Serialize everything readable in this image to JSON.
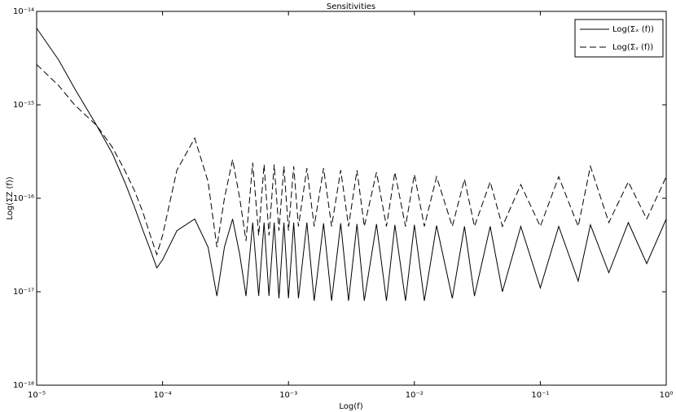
{
  "chart_data": {
    "type": "line",
    "title": "Sensitivities",
    "xlabel": "Log(f)",
    "ylabel": "Log(ΣZ (f))",
    "xscale": "log",
    "yscale": "log",
    "xlim": [
      1e-05,
      1
    ],
    "ylim": [
      1e-18,
      1e-14
    ],
    "xticks": [
      {
        "value": 1e-05,
        "label": "10⁻⁵"
      },
      {
        "value": 0.0001,
        "label": "10⁻⁴"
      },
      {
        "value": 0.001,
        "label": "10⁻³"
      },
      {
        "value": 0.01,
        "label": "10⁻²"
      },
      {
        "value": 0.1,
        "label": "10⁻¹"
      },
      {
        "value": 1,
        "label": "10⁰"
      }
    ],
    "yticks": [
      {
        "value": 1e-18,
        "label": "10⁻¹⁸"
      },
      {
        "value": 1e-17,
        "label": "10⁻¹⁷"
      },
      {
        "value": 1e-16,
        "label": "10⁻¹⁶"
      },
      {
        "value": 1e-15,
        "label": "10⁻¹⁵"
      },
      {
        "value": 1e-14,
        "label": "10⁻¹⁴"
      }
    ],
    "legend": "upper right",
    "x": [
      1e-05,
      1.5e-05,
      2e-05,
      3e-05,
      4e-05,
      5e-05,
      6e-05,
      7e-05,
      8e-05,
      9e-05,
      0.0001,
      0.00013,
      0.00018,
      0.00023,
      0.00027,
      0.00031,
      0.00036,
      0.00041,
      0.00046,
      0.00052,
      0.00058,
      0.00064,
      0.0007,
      0.00077,
      0.00084,
      0.00092,
      0.001,
      0.0011,
      0.0012,
      0.0014,
      0.0016,
      0.0019,
      0.0022,
      0.0026,
      0.003,
      0.0035,
      0.004,
      0.005,
      0.006,
      0.007,
      0.0085,
      0.01,
      0.012,
      0.015,
      0.02,
      0.025,
      0.03,
      0.04,
      0.05,
      0.07,
      0.1,
      0.14,
      0.2,
      0.25,
      0.35,
      0.5,
      0.7,
      1
    ],
    "series": [
      {
        "name": "Log(Σₓ (f))",
        "color": "#000000",
        "linestyle": "solid",
        "values": [
          6.6e-15,
          3e-15,
          1.5e-15,
          6e-16,
          3e-16,
          1.5e-16,
          8e-17,
          4.5e-17,
          2.8e-17,
          1.8e-17,
          2.2e-17,
          4.5e-17,
          6e-17,
          3e-17,
          9e-18,
          3e-17,
          6e-17,
          2.5e-17,
          9e-18,
          5.5e-17,
          9e-18,
          5.5e-17,
          9e-18,
          5.5e-17,
          8.5e-18,
          5.5e-17,
          8.5e-18,
          5.5e-17,
          8.5e-18,
          5.5e-17,
          8e-18,
          5.4e-17,
          8e-18,
          5.4e-17,
          8e-18,
          5.3e-17,
          8e-18,
          5.3e-17,
          8e-18,
          5.2e-17,
          8e-18,
          5.2e-17,
          8e-18,
          5.1e-17,
          8.5e-18,
          5e-17,
          9e-18,
          5e-17,
          1e-17,
          5e-17,
          1.1e-17,
          5e-17,
          1.3e-17,
          5.2e-17,
          1.6e-17,
          5.5e-17,
          2e-17,
          6e-17
        ]
      },
      {
        "name": "Log(Σᵧ (f))",
        "color": "#000000",
        "linestyle": "dashed",
        "values": [
          2.7e-15,
          1.6e-15,
          1e-15,
          6e-16,
          3.5e-16,
          2e-16,
          1.2e-16,
          7e-17,
          4e-17,
          2.5e-17,
          4e-17,
          2e-16,
          4.4e-16,
          1.5e-16,
          3e-17,
          1e-16,
          2.6e-16,
          1e-16,
          3.5e-17,
          2.4e-16,
          4e-17,
          2.3e-16,
          4e-17,
          2.3e-16,
          4.5e-17,
          2.2e-16,
          4.5e-17,
          2.2e-16,
          5e-17,
          2.1e-16,
          5e-17,
          2.1e-16,
          5e-17,
          2e-16,
          5e-17,
          2e-16,
          5e-17,
          1.9e-16,
          5e-17,
          1.9e-16,
          5e-17,
          1.8e-16,
          5e-17,
          1.7e-16,
          5e-17,
          1.6e-16,
          5e-17,
          1.5e-16,
          5e-17,
          1.4e-16,
          5e-17,
          1.7e-16,
          5e-17,
          2.2e-16,
          5.5e-17,
          1.5e-16,
          6e-17,
          1.7e-16
        ]
      }
    ]
  }
}
